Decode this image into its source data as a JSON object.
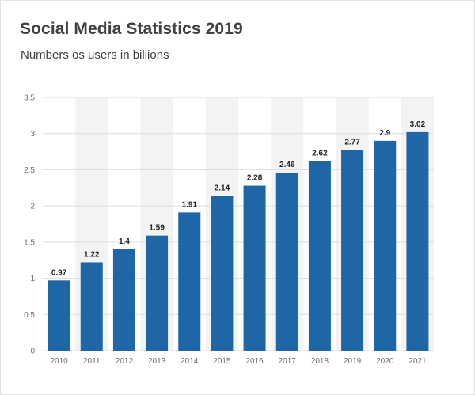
{
  "chart_data": {
    "type": "bar",
    "title": "Social Media Statistics 2019",
    "subtitle": "Numbers os users in billions",
    "xlabel": "",
    "ylabel": "",
    "categories": [
      "2010",
      "2011",
      "2012",
      "2013",
      "2014",
      "2015",
      "2016",
      "2017",
      "2018",
      "2019",
      "2020",
      "2021"
    ],
    "values": [
      0.97,
      1.22,
      1.4,
      1.59,
      1.91,
      2.14,
      2.28,
      2.46,
      2.62,
      2.77,
      2.9,
      3.02
    ],
    "data_labels": [
      "0.97",
      "1.22",
      "1.4",
      "1.59",
      "1.91",
      "2.14",
      "2.28",
      "2.46",
      "2.62",
      "2.77",
      "2.9",
      "3.02"
    ],
    "y_ticks": [
      0,
      0.5,
      1,
      1.5,
      2,
      2.5,
      3,
      3.5
    ],
    "y_tick_labels": [
      "0",
      "0.5",
      "1",
      "1.5",
      "2",
      "2.5",
      "3",
      "3.5"
    ],
    "ylim": [
      0,
      3.5
    ],
    "grid": true,
    "alternating_column_shading": true,
    "colors": {
      "bar": "#1f66a6",
      "shade": "#f3f3f3",
      "grid": "#dddddd"
    }
  }
}
